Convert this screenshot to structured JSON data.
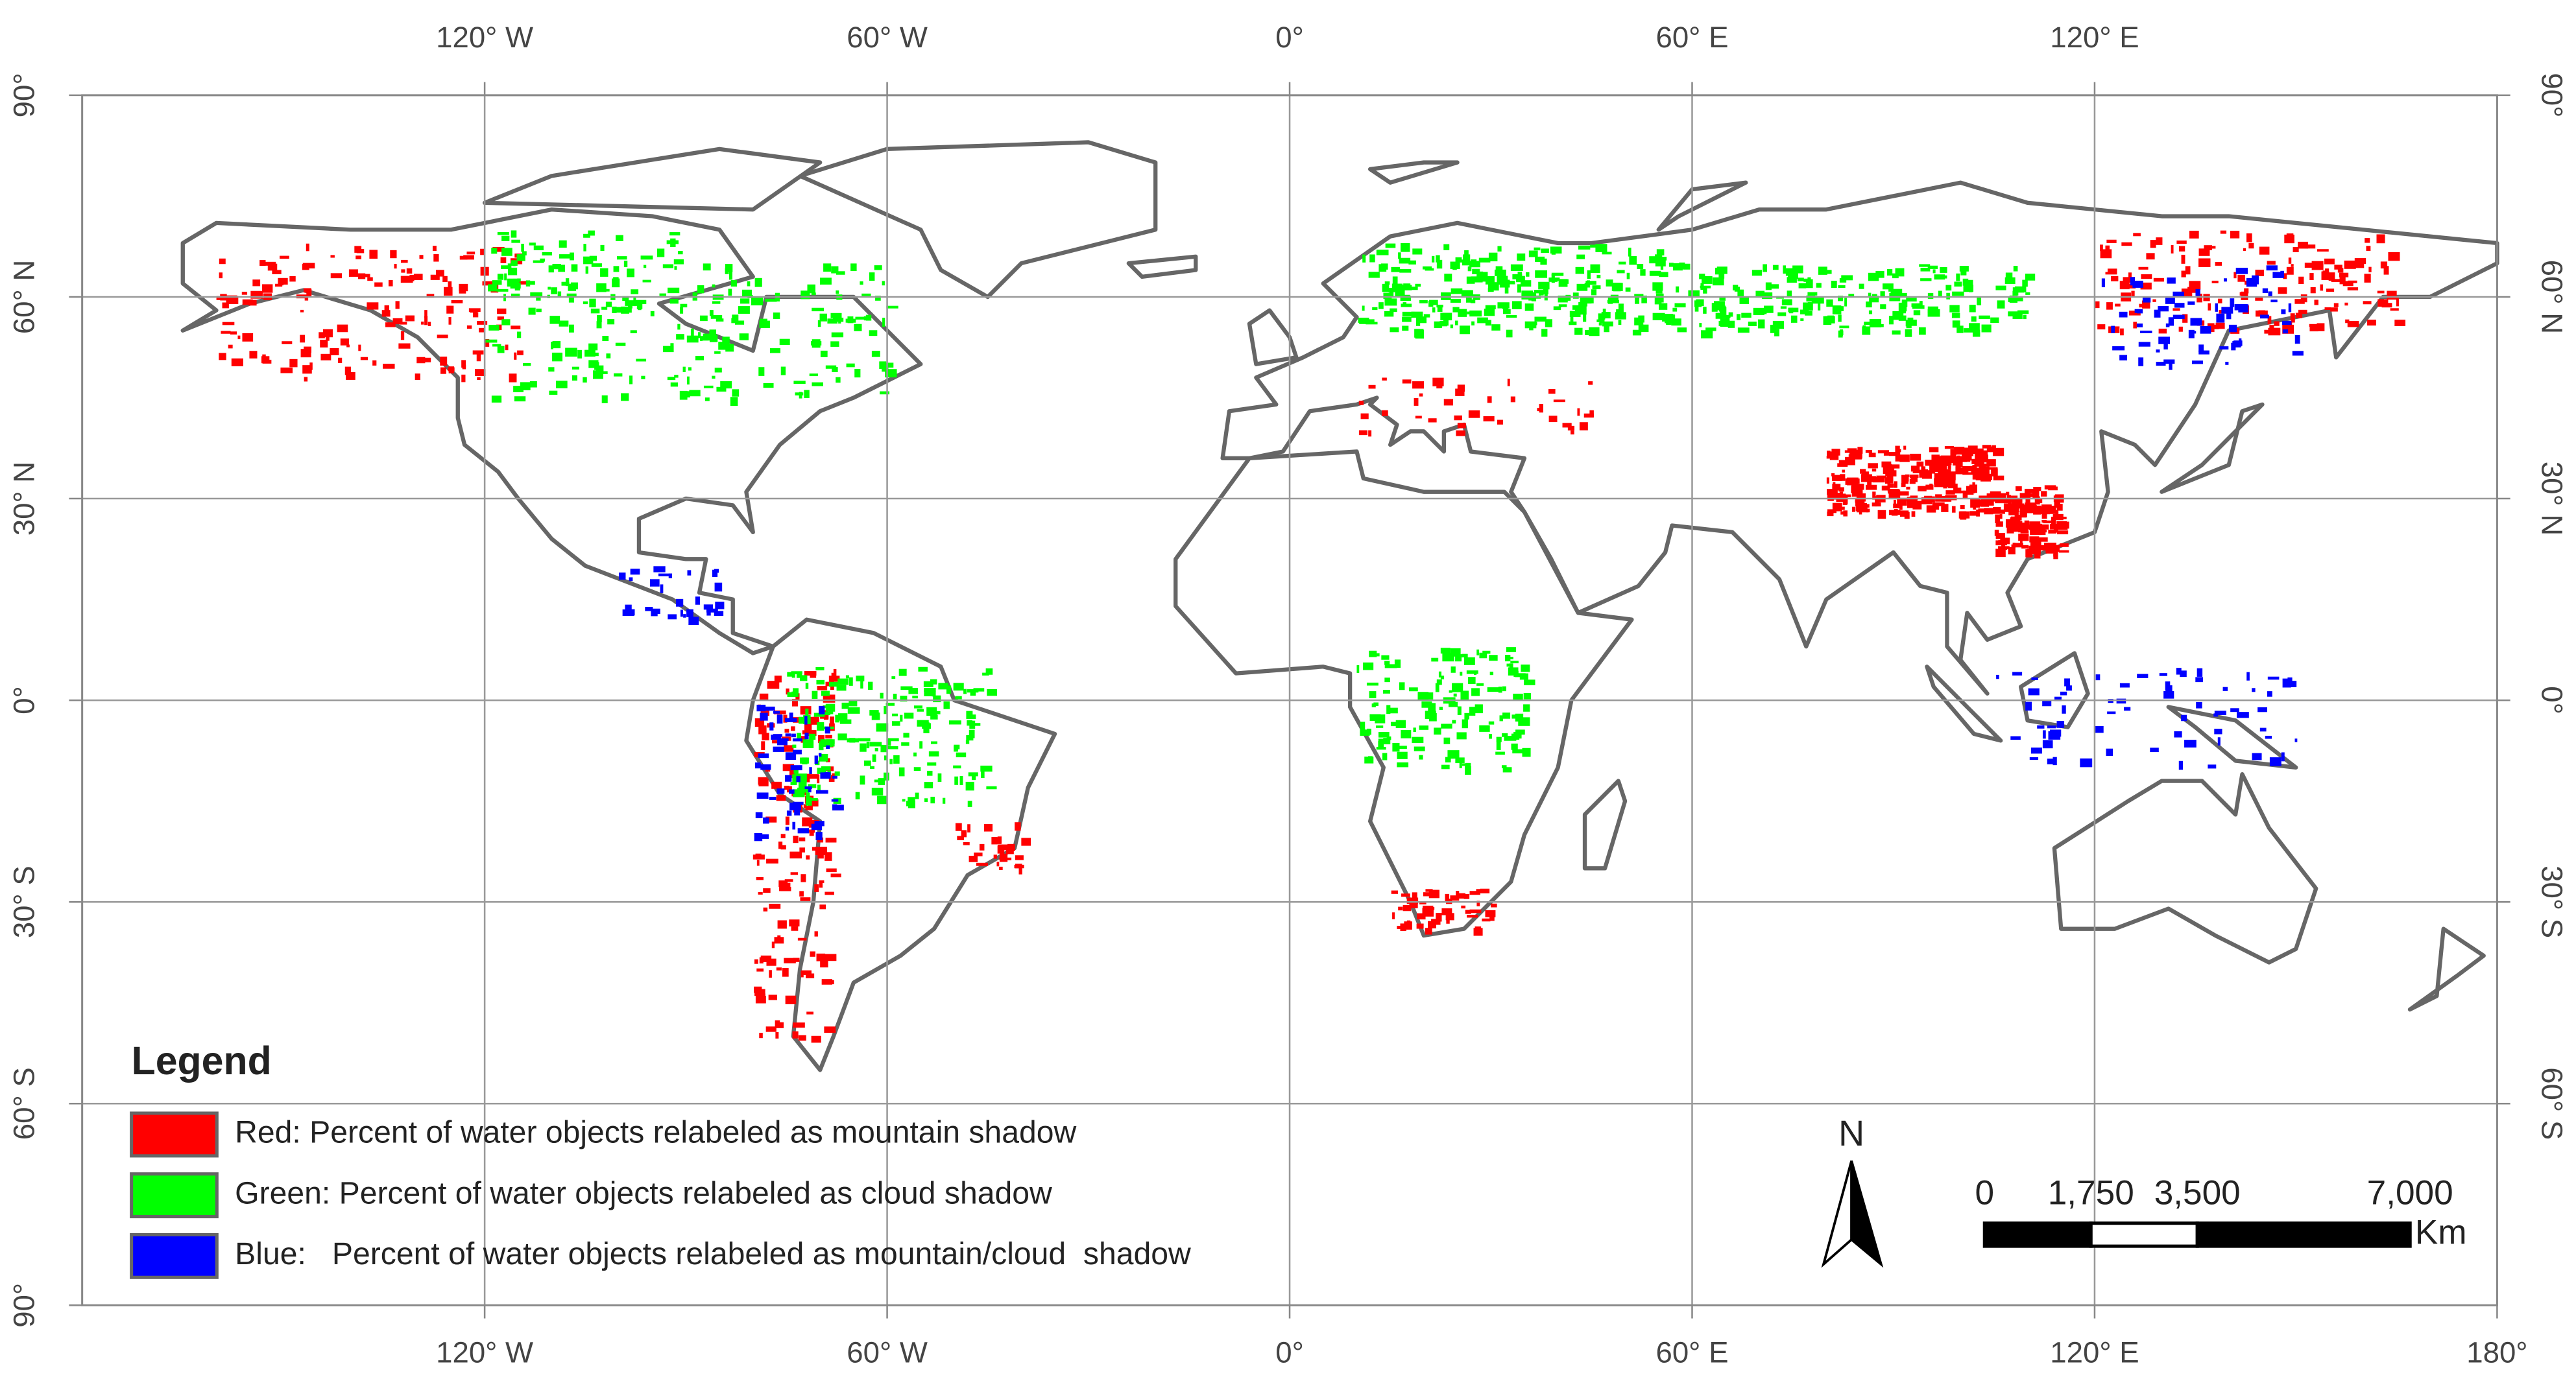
{
  "graticule": {
    "lon_top": [
      {
        "value": -120,
        "label": "120° W"
      },
      {
        "value": -60,
        "label": "60° W"
      },
      {
        "value": 0,
        "label": "0°"
      },
      {
        "value": 60,
        "label": "60° E"
      },
      {
        "value": 120,
        "label": "120° E"
      }
    ],
    "lon_bottom": [
      {
        "value": -120,
        "label": "120° W"
      },
      {
        "value": -60,
        "label": "60° W"
      },
      {
        "value": 0,
        "label": "0°"
      },
      {
        "value": 60,
        "label": "60° E"
      },
      {
        "value": 120,
        "label": "120° E"
      },
      {
        "value": 180,
        "label": "180°"
      }
    ],
    "lat_left": [
      {
        "value": 90,
        "label": "90°"
      },
      {
        "value": 60,
        "label": "60° N"
      },
      {
        "value": 30,
        "label": "30° N"
      },
      {
        "value": 0,
        "label": "0°"
      },
      {
        "value": -30,
        "label": "30° S"
      },
      {
        "value": -60,
        "label": "60° S"
      },
      {
        "value": -90,
        "label": "90°"
      }
    ],
    "lat_right": [
      {
        "value": 90,
        "label": "90°"
      },
      {
        "value": 60,
        "label": "60° N"
      },
      {
        "value": 30,
        "label": "30° N"
      },
      {
        "value": 0,
        "label": "0°"
      },
      {
        "value": -30,
        "label": "30° S"
      },
      {
        "value": -60,
        "label": "60° S"
      }
    ]
  },
  "legend": {
    "title": "Legend",
    "items": [
      {
        "color": "#ff0000",
        "label": "Red: Percent of water objects relabeled as mountain shadow"
      },
      {
        "color": "#00ff00",
        "label": "Green: Percent of water objects relabeled as cloud shadow"
      },
      {
        "color": "#0000ff",
        "label": "Blue:   Percent of water objects relabeled as mountain/cloud  shadow"
      }
    ]
  },
  "north_arrow": "N",
  "scale_bar": {
    "ticks": [
      0,
      {
        "value": 1750,
        "label": "1,750"
      },
      {
        "value": 3500,
        "label": "3,500"
      },
      {
        "value": 7000,
        "label": "7,000"
      }
    ],
    "unit": "Km"
  }
}
